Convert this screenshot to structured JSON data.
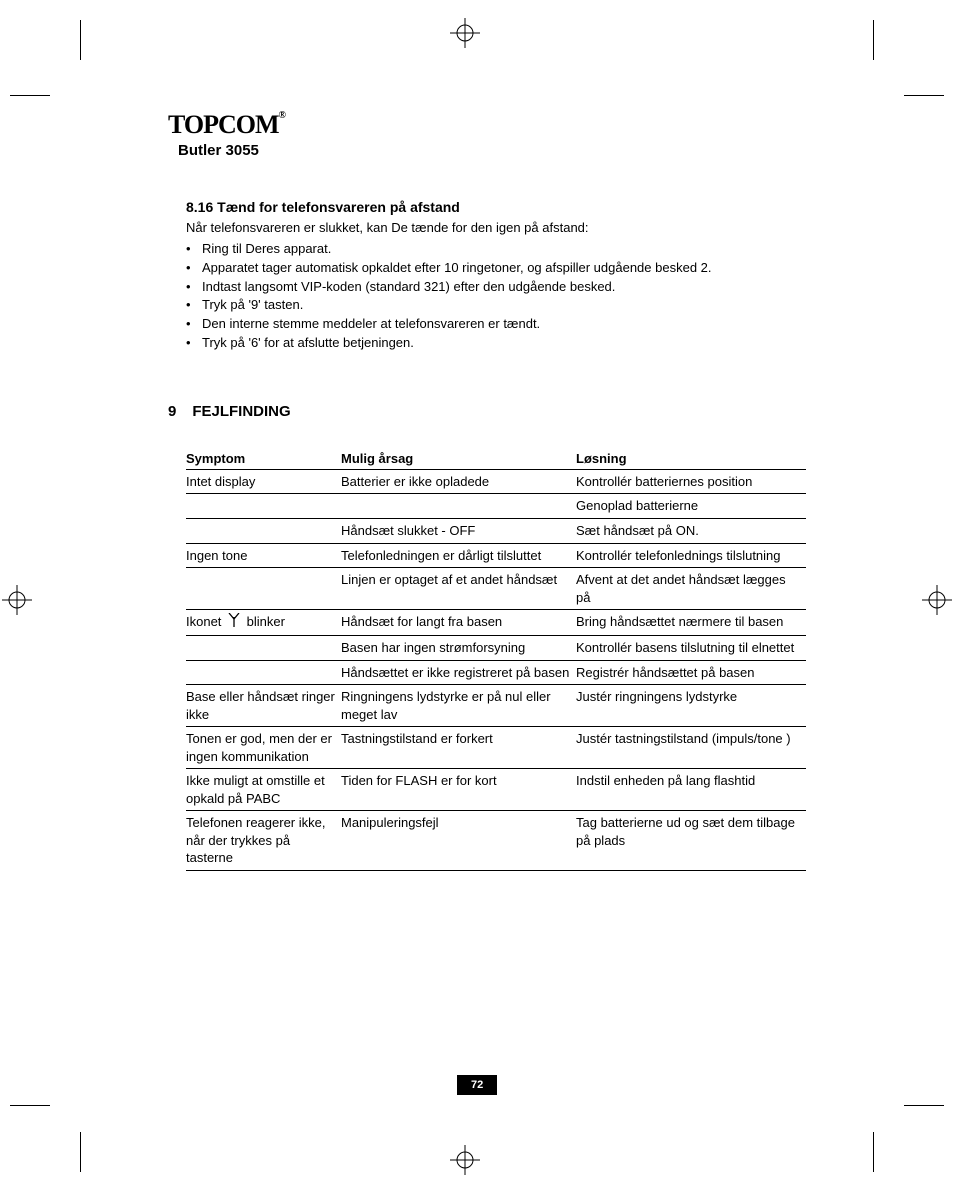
{
  "brand": "TOPCOM",
  "model": "Butler 3055",
  "section": {
    "number": "8.16",
    "title": "Tænd for telefonsvareren på afstand",
    "intro": "Når telefonsvareren er slukket, kan De tænde for den igen på afstand:",
    "bullets": [
      "Ring til Deres apparat.",
      "Apparatet tager automatisk opkaldet efter 10 ringetoner, og afspiller udgående besked 2.",
      "Indtast langsomt VIP-koden (standard 321) efter den udgående besked.",
      "Tryk på '9' tasten.",
      "Den interne stemme meddeler at telefonsvareren er tændt.",
      "Tryk på '6' for at afslutte betjeningen."
    ]
  },
  "chapter": {
    "number": "9",
    "title": "FEJLFINDING"
  },
  "table": {
    "headers": {
      "symptom": "Symptom",
      "cause": "Mulig årsag",
      "fix": "Løsning"
    },
    "rows": [
      {
        "symptom": "Intet display",
        "cause": "Batterier er ikke opladede",
        "fix": "Kontrollér batteriernes position"
      },
      {
        "symptom": "",
        "cause": "",
        "fix": "Genoplad batterierne"
      },
      {
        "symptom": "",
        "cause": "Håndsæt slukket - OFF",
        "fix": "Sæt håndsæt på ON."
      },
      {
        "symptom": "Ingen tone",
        "cause": "Telefonledningen er dårligt tilsluttet",
        "fix": "Kontrollér telefonlednings tilslutning"
      },
      {
        "symptom": "",
        "cause": "Linjen er optaget af et andet håndsæt",
        "fix": "Afvent at det andet håndsæt lægges på"
      },
      {
        "symptom": "__ICON__",
        "cause": "Håndsæt for langt fra basen",
        "fix": "Bring håndsættet nærmere til basen",
        "iconPrefix": "Ikonet",
        "iconSuffix": "blinker"
      },
      {
        "symptom": "",
        "cause": "Basen har ingen strømforsyning",
        "fix": "Kontrollér basens tilslutning til elnettet"
      },
      {
        "symptom": "",
        "cause": "Håndsættet er ikke registreret på basen",
        "fix": "Registrér håndsættet på basen"
      },
      {
        "symptom": "Base eller håndsæt ringer ikke",
        "cause": "Ringningens lydstyrke er på nul eller meget lav",
        "fix": "Justér ringningens lydstyrke"
      },
      {
        "symptom": "Tonen er god, men der er ingen kommunikation",
        "cause": "Tastningstilstand er forkert",
        "fix": "Justér tastningstilstand (impuls/tone )"
      },
      {
        "symptom": "Ikke muligt at omstille et opkald på PABC",
        "cause": "Tiden for FLASH er for kort",
        "fix": "Indstil enheden på lang flashtid"
      },
      {
        "symptom": "Telefonen reagerer ikke, når der trykkes på tasterne",
        "cause": "Manipuleringsfejl",
        "fix": "Tag batterierne ud og sæt dem tilbage på plads"
      }
    ]
  },
  "pageNumber": "72",
  "colors": {
    "text": "#000000",
    "background": "#ffffff",
    "pageNumBg": "#000000",
    "pageNumFg": "#ffffff"
  }
}
